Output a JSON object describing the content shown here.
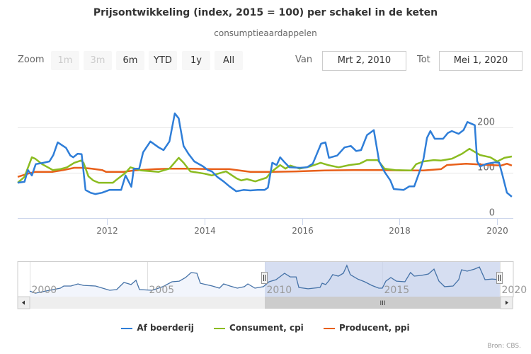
{
  "colors": {
    "af_boerderij": "#2f7ed8",
    "consument": "#8bbc21",
    "producent": "#e8601a",
    "navigator_line": "#4572a7",
    "navigator_mask": "#c8d3ec",
    "grid": "#e6e6e6",
    "axis": "#ccd6eb"
  },
  "range_selector": {
    "label": "Zoom",
    "buttons": [
      {
        "label": "1m",
        "disabled": true
      },
      {
        "label": "3m",
        "disabled": true
      },
      {
        "label": "6m",
        "disabled": false
      },
      {
        "label": "YTD",
        "disabled": false
      },
      {
        "label": "1y",
        "disabled": false
      },
      {
        "label": "All",
        "disabled": false
      }
    ],
    "from_label": "Van",
    "from_value": "Mrt 2, 2010",
    "to_label": "Tot",
    "to_value": "Mei 1, 2020"
  },
  "navigator": {
    "x_ticks": [
      "2000",
      "2005",
      "2010",
      "2015",
      "2020"
    ],
    "x_tick_years": [
      2000,
      2005,
      2010,
      2015,
      2020
    ],
    "range": [
      2000.0,
      2020.33
    ],
    "selected": [
      2010.17,
      2020.33
    ],
    "scroll_grip": "III",
    "series": [
      [
        2000.0,
        38
      ],
      [
        2000.24,
        22
      ],
      [
        2000.54,
        33
      ],
      [
        2001.3,
        60
      ],
      [
        2001.45,
        76
      ],
      [
        2001.75,
        76
      ],
      [
        2002.05,
        92
      ],
      [
        2002.29,
        81
      ],
      [
        2002.8,
        76
      ],
      [
        2003.4,
        44
      ],
      [
        2003.7,
        49
      ],
      [
        2004.01,
        103
      ],
      [
        2004.31,
        87
      ],
      [
        2004.52,
        119
      ],
      [
        2004.67,
        49
      ],
      [
        2005.21,
        44
      ],
      [
        2005.66,
        71
      ],
      [
        2006.05,
        108
      ],
      [
        2006.36,
        113
      ],
      [
        2006.63,
        140
      ],
      [
        2006.87,
        178
      ],
      [
        2007.11,
        172
      ],
      [
        2007.26,
        97
      ],
      [
        2007.77,
        76
      ],
      [
        2008.07,
        60
      ],
      [
        2008.25,
        92
      ],
      [
        2008.52,
        76
      ],
      [
        2008.83,
        60
      ],
      [
        2009.13,
        71
      ],
      [
        2009.28,
        92
      ],
      [
        2009.58,
        60
      ],
      [
        2009.94,
        71
      ],
      [
        2010.18,
        108
      ],
      [
        2010.48,
        124
      ],
      [
        2010.84,
        172
      ],
      [
        2011.08,
        145
      ],
      [
        2011.33,
        145
      ],
      [
        2011.45,
        65
      ],
      [
        2011.84,
        55
      ],
      [
        2012.35,
        65
      ],
      [
        2012.44,
        97
      ],
      [
        2012.59,
        87
      ],
      [
        2012.74,
        119
      ],
      [
        2012.89,
        162
      ],
      [
        2013.13,
        151
      ],
      [
        2013.34,
        172
      ],
      [
        2013.49,
        231
      ],
      [
        2013.64,
        162
      ],
      [
        2013.95,
        129
      ],
      [
        2014.25,
        108
      ],
      [
        2014.55,
        81
      ],
      [
        2014.85,
        60
      ],
      [
        2015.0,
        60
      ],
      [
        2015.15,
        113
      ],
      [
        2015.36,
        140
      ],
      [
        2015.6,
        113
      ],
      [
        2015.96,
        108
      ],
      [
        2016.2,
        178
      ],
      [
        2016.36,
        151
      ],
      [
        2016.66,
        156
      ],
      [
        2016.96,
        167
      ],
      [
        2017.2,
        204
      ],
      [
        2017.41,
        113
      ],
      [
        2017.65,
        71
      ],
      [
        2018.01,
        76
      ],
      [
        2018.25,
        124
      ],
      [
        2018.37,
        199
      ],
      [
        2018.61,
        188
      ],
      [
        2018.92,
        204
      ],
      [
        2019.13,
        220
      ],
      [
        2019.37,
        124
      ],
      [
        2019.67,
        129
      ],
      [
        2019.97,
        124
      ]
    ]
  },
  "legend": {
    "placement": "bottom-center"
  },
  "credits": "Bron: CBS.",
  "chart_data": {
    "type": "line",
    "title": "Prijsontwikkeling (index, 2015 = 100) per schakel in de keten",
    "subtitle": "consumptieaardappelen",
    "xlabel": "",
    "ylabel": "",
    "xlim": [
      2010.17,
      2020.33
    ],
    "ylim": [
      0,
      240
    ],
    "grid": true,
    "x_ticks": [
      "2012",
      "2014",
      "2016",
      "2018",
      "2020"
    ],
    "x_tick_years": [
      2012,
      2014,
      2016,
      2018,
      2020
    ],
    "y_ticks": [
      "0",
      "100",
      "200"
    ],
    "y_tick_values": [
      0,
      100,
      200
    ],
    "series": [
      {
        "name": "Af boerderij",
        "color_key": "af_boerderij",
        "points": [
          [
            2010.17,
            78
          ],
          [
            2010.31,
            80
          ],
          [
            2010.38,
            106
          ],
          [
            2010.46,
            94
          ],
          [
            2010.54,
            119
          ],
          [
            2010.7,
            122
          ],
          [
            2010.82,
            125
          ],
          [
            2010.9,
            139
          ],
          [
            2010.99,
            167
          ],
          [
            2011.16,
            155
          ],
          [
            2011.25,
            138
          ],
          [
            2011.31,
            134
          ],
          [
            2011.4,
            142
          ],
          [
            2011.48,
            141
          ],
          [
            2011.56,
            62
          ],
          [
            2011.66,
            56
          ],
          [
            2011.76,
            53
          ],
          [
            2011.9,
            56
          ],
          [
            2012.05,
            62
          ],
          [
            2012.19,
            62
          ],
          [
            2012.29,
            62
          ],
          [
            2012.38,
            94
          ],
          [
            2012.5,
            69
          ],
          [
            2012.55,
            109
          ],
          [
            2012.66,
            109
          ],
          [
            2012.74,
            145
          ],
          [
            2012.89,
            169
          ],
          [
            2013.06,
            156
          ],
          [
            2013.16,
            150
          ],
          [
            2013.28,
            169
          ],
          [
            2013.39,
            231
          ],
          [
            2013.47,
            220
          ],
          [
            2013.57,
            159
          ],
          [
            2013.67,
            142
          ],
          [
            2013.79,
            125
          ],
          [
            2013.97,
            114
          ],
          [
            2014.07,
            106
          ],
          [
            2014.15,
            103
          ],
          [
            2014.26,
            91
          ],
          [
            2014.39,
            81
          ],
          [
            2014.51,
            70
          ],
          [
            2014.65,
            59
          ],
          [
            2014.8,
            62
          ],
          [
            2014.94,
            61
          ],
          [
            2015.09,
            62
          ],
          [
            2015.23,
            62
          ],
          [
            2015.3,
            67
          ],
          [
            2015.39,
            122
          ],
          [
            2015.48,
            117
          ],
          [
            2015.55,
            134
          ],
          [
            2015.65,
            122
          ],
          [
            2015.74,
            112
          ],
          [
            2015.96,
            111
          ],
          [
            2016.1,
            112
          ],
          [
            2016.22,
            120
          ],
          [
            2016.39,
            164
          ],
          [
            2016.48,
            167
          ],
          [
            2016.55,
            133
          ],
          [
            2016.72,
            138
          ],
          [
            2016.87,
            156
          ],
          [
            2017.0,
            159
          ],
          [
            2017.11,
            148
          ],
          [
            2017.21,
            150
          ],
          [
            2017.33,
            183
          ],
          [
            2017.47,
            194
          ],
          [
            2017.58,
            125
          ],
          [
            2017.69,
            102
          ],
          [
            2017.81,
            83
          ],
          [
            2017.88,
            64
          ],
          [
            2018.08,
            62
          ],
          [
            2018.2,
            70
          ],
          [
            2018.3,
            70
          ],
          [
            2018.42,
            106
          ],
          [
            2018.49,
            131
          ],
          [
            2018.56,
            177
          ],
          [
            2018.63,
            192
          ],
          [
            2018.72,
            175
          ],
          [
            2018.89,
            175
          ],
          [
            2018.99,
            188
          ],
          [
            2019.07,
            192
          ],
          [
            2019.21,
            186
          ],
          [
            2019.31,
            194
          ],
          [
            2019.39,
            212
          ],
          [
            2019.54,
            205
          ],
          [
            2019.59,
            125
          ],
          [
            2019.65,
            114
          ],
          [
            2019.79,
            120
          ],
          [
            2019.95,
            123
          ],
          [
            2020.04,
            122
          ],
          [
            2020.11,
            94
          ],
          [
            2020.2,
            56
          ],
          [
            2020.3,
            47
          ]
        ]
      },
      {
        "name": "Consument, cpi",
        "color_key": "consument",
        "points": [
          [
            2010.17,
            78
          ],
          [
            2010.31,
            91
          ],
          [
            2010.46,
            134
          ],
          [
            2010.53,
            131
          ],
          [
            2010.67,
            119
          ],
          [
            2010.89,
            106
          ],
          [
            2011.04,
            108
          ],
          [
            2011.18,
            112
          ],
          [
            2011.33,
            122
          ],
          [
            2011.47,
            127
          ],
          [
            2011.52,
            122
          ],
          [
            2011.62,
            92
          ],
          [
            2011.72,
            83
          ],
          [
            2011.83,
            78
          ],
          [
            2012.12,
            78
          ],
          [
            2012.19,
            84
          ],
          [
            2012.38,
            100
          ],
          [
            2012.48,
            112
          ],
          [
            2012.7,
            105
          ],
          [
            2013.06,
            102
          ],
          [
            2013.28,
            109
          ],
          [
            2013.47,
            133
          ],
          [
            2013.57,
            122
          ],
          [
            2013.71,
            103
          ],
          [
            2014.0,
            98
          ],
          [
            2014.15,
            94
          ],
          [
            2014.44,
            103
          ],
          [
            2014.65,
            88
          ],
          [
            2014.75,
            83
          ],
          [
            2014.87,
            86
          ],
          [
            2015.04,
            81
          ],
          [
            2015.27,
            89
          ],
          [
            2015.37,
            102
          ],
          [
            2015.55,
            117
          ],
          [
            2015.66,
            109
          ],
          [
            2015.76,
            116
          ],
          [
            2015.95,
            109
          ],
          [
            2016.17,
            114
          ],
          [
            2016.38,
            122
          ],
          [
            2016.53,
            117
          ],
          [
            2016.75,
            112
          ],
          [
            2016.97,
            117
          ],
          [
            2017.18,
            120
          ],
          [
            2017.33,
            128
          ],
          [
            2017.55,
            128
          ],
          [
            2017.69,
            109
          ],
          [
            2017.91,
            106
          ],
          [
            2018.24,
            105
          ],
          [
            2018.34,
            119
          ],
          [
            2018.49,
            125
          ],
          [
            2018.7,
            128
          ],
          [
            2018.85,
            127
          ],
          [
            2019.07,
            131
          ],
          [
            2019.28,
            142
          ],
          [
            2019.43,
            153
          ],
          [
            2019.65,
            139
          ],
          [
            2019.86,
            134
          ],
          [
            2020.0,
            125
          ],
          [
            2020.15,
            133
          ],
          [
            2020.3,
            136
          ]
        ]
      },
      {
        "name": "Producent, ppi",
        "color_key": "producent",
        "points": [
          [
            2010.17,
            91
          ],
          [
            2010.38,
            98
          ],
          [
            2010.53,
            102
          ],
          [
            2010.89,
            102
          ],
          [
            2011.11,
            106
          ],
          [
            2011.33,
            111
          ],
          [
            2011.47,
            111
          ],
          [
            2011.69,
            109
          ],
          [
            2011.9,
            106
          ],
          [
            2011.98,
            102
          ],
          [
            2012.34,
            102
          ],
          [
            2012.55,
            105
          ],
          [
            2012.99,
            108
          ],
          [
            2013.28,
            109
          ],
          [
            2013.71,
            109
          ],
          [
            2014.15,
            108
          ],
          [
            2014.51,
            108
          ],
          [
            2014.94,
            102
          ],
          [
            2015.37,
            102
          ],
          [
            2015.88,
            103
          ],
          [
            2016.46,
            105
          ],
          [
            2017.04,
            106
          ],
          [
            2017.62,
            106
          ],
          [
            2018.05,
            105
          ],
          [
            2018.49,
            105
          ],
          [
            2018.85,
            108
          ],
          [
            2018.97,
            117
          ],
          [
            2019.36,
            120
          ],
          [
            2019.86,
            117
          ],
          [
            2020.08,
            116
          ],
          [
            2020.2,
            120
          ],
          [
            2020.3,
            116
          ]
        ]
      }
    ]
  }
}
